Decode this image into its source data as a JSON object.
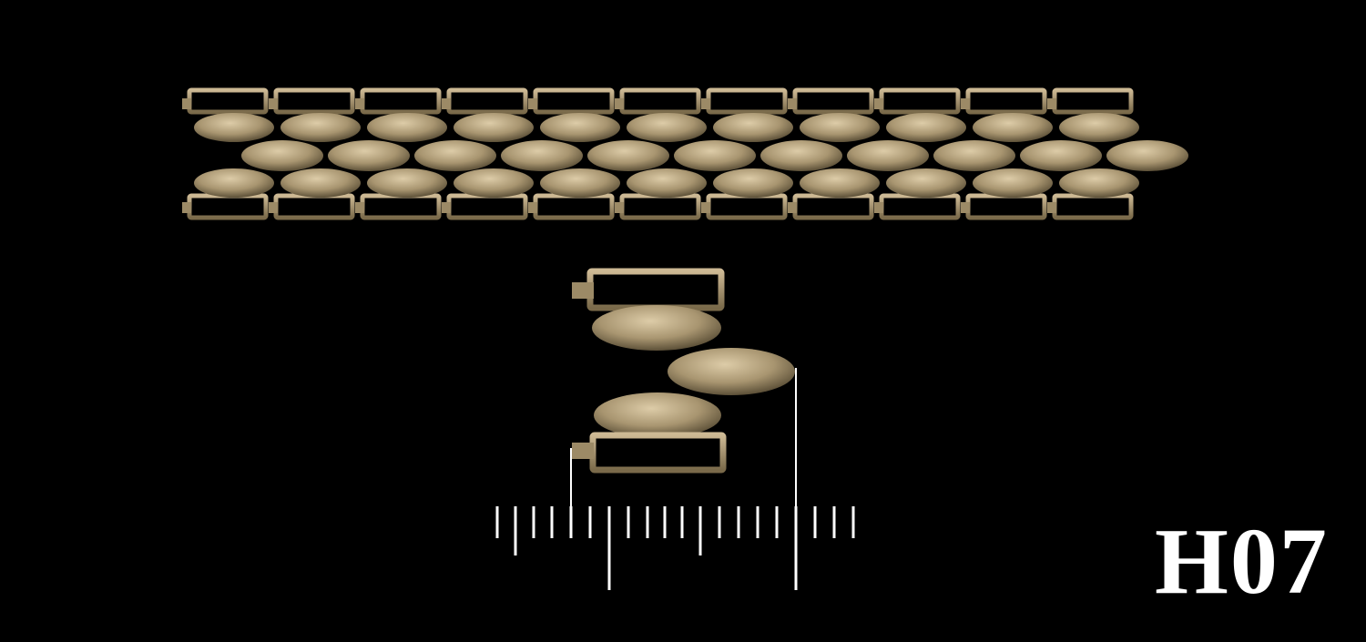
{
  "product_code": "H07",
  "colors": {
    "background": "#000000",
    "metal_light": "#d6c4a0",
    "metal_mid": "#a89570",
    "metal_dark": "#4f442e",
    "ruler": "#ffffff"
  },
  "objects": [
    "bracelet-chain-strip",
    "single-link-detail",
    "measurement-ruler"
  ]
}
